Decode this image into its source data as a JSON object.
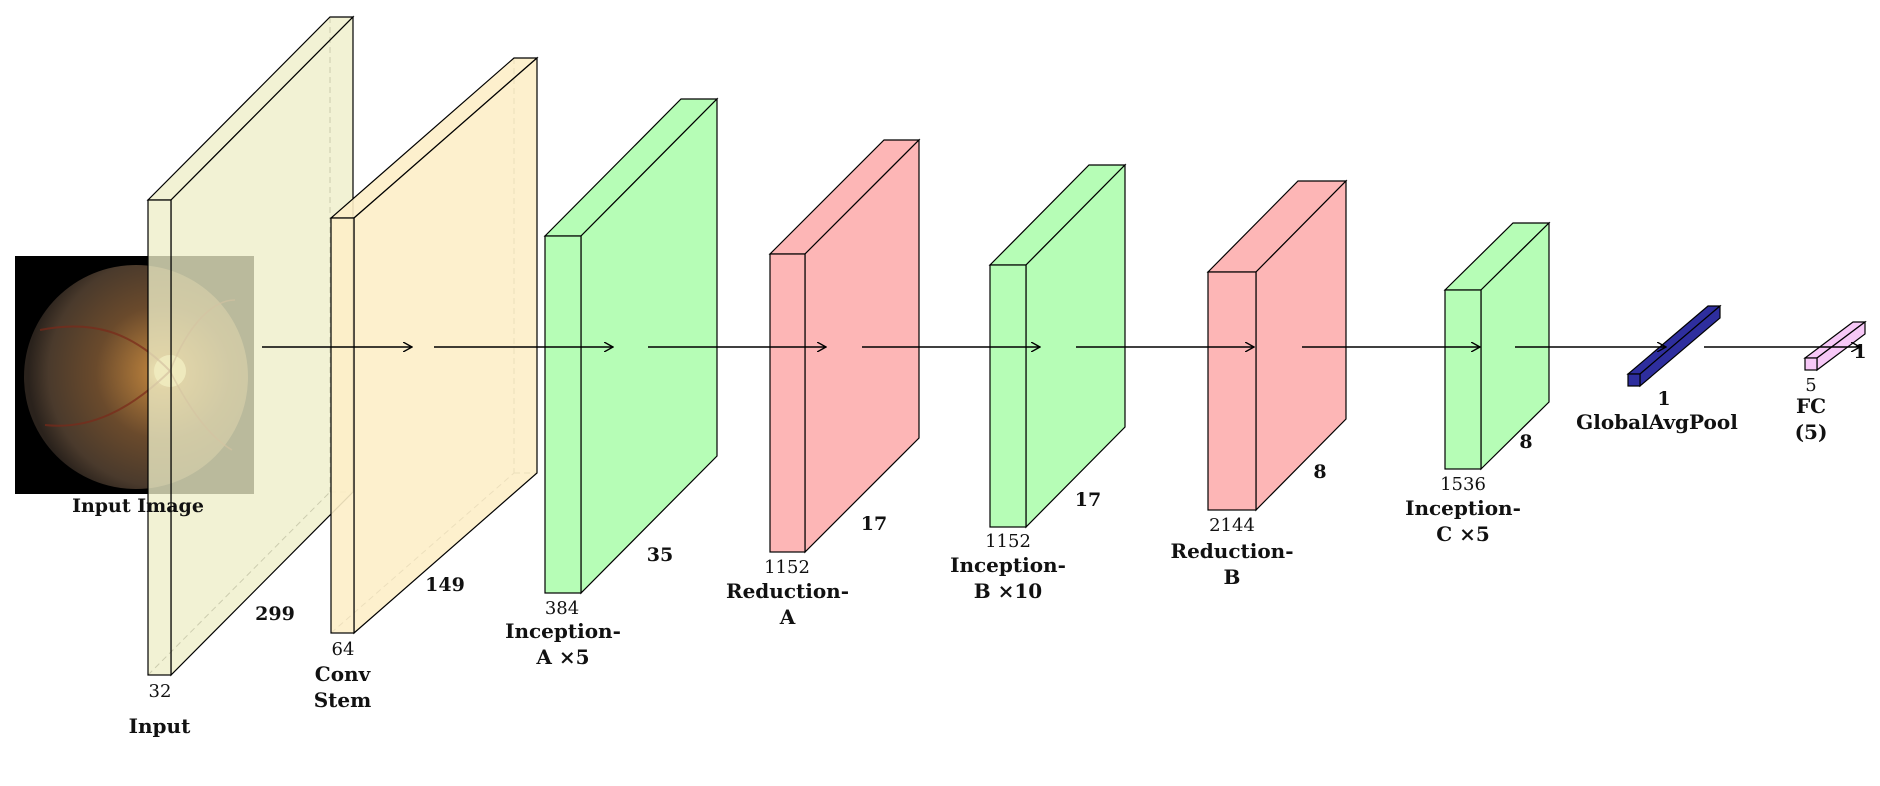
{
  "input_image": {
    "caption": "Input Image",
    "icon": "retina-fundus-image"
  },
  "colors": {
    "input": "#eeeec8",
    "stem": "#fdeec8",
    "inception": "#b6fdb6",
    "reduction": "#fdb6b6",
    "pool": "#2e2e9e",
    "fc": "#f7c8f7"
  },
  "layers": [
    {
      "id": "input",
      "type": "input",
      "channels": "32",
      "spatial": "299",
      "label": [
        "Input",
        ""
      ]
    },
    {
      "id": "stem",
      "type": "stem",
      "channels": "64",
      "spatial": "149",
      "label": [
        "Conv",
        "Stem"
      ]
    },
    {
      "id": "inception-a",
      "type": "inception",
      "channels": "384",
      "spatial": "35",
      "label": [
        "Inception-",
        "A ×5"
      ]
    },
    {
      "id": "reduction-a",
      "type": "reduction",
      "channels": "1152",
      "spatial": "17",
      "label": [
        "Reduction-",
        "A"
      ]
    },
    {
      "id": "inception-b",
      "type": "inception",
      "channels": "1152",
      "spatial": "17",
      "label": [
        "Inception-",
        "B ×10"
      ]
    },
    {
      "id": "reduction-b",
      "type": "reduction",
      "channels": "2144",
      "spatial": "8",
      "label": [
        "Reduction-",
        "B"
      ]
    },
    {
      "id": "inception-c",
      "type": "inception",
      "channels": "1536",
      "spatial": "8",
      "label": [
        "Inception-",
        "C ×5"
      ]
    },
    {
      "id": "global-avg-pool",
      "type": "pool",
      "channels": "",
      "spatial": "1",
      "label": [
        "GlobalAvgPool",
        ""
      ]
    },
    {
      "id": "fc",
      "type": "fc",
      "channels": "5",
      "spatial": "1",
      "label": [
        "FC",
        "(5)"
      ]
    }
  ]
}
